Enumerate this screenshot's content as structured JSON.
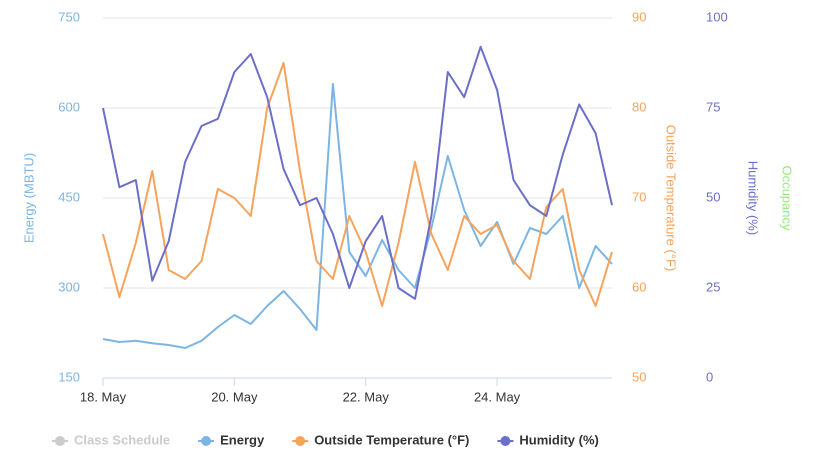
{
  "chart_data": {
    "type": "line",
    "x": [
      18,
      18.25,
      18.5,
      18.75,
      19,
      19.25,
      19.5,
      19.75,
      20,
      20.25,
      20.5,
      20.75,
      21,
      21.25,
      21.5,
      21.75,
      22,
      22.25,
      22.5,
      22.75,
      23,
      23.25,
      23.5,
      23.75,
      24,
      24.25,
      24.5,
      24.75,
      25,
      25.25,
      25.5,
      25.75
    ],
    "xlim": [
      18,
      25.75
    ],
    "xticks": [
      {
        "value": 18,
        "label": "18. May"
      },
      {
        "value": 20,
        "label": "20. May"
      },
      {
        "value": 22,
        "label": "22. May"
      },
      {
        "value": 24,
        "label": "24. May"
      }
    ],
    "ylabel": "Energy (MBTU)",
    "ylim": [
      150,
      750
    ],
    "yticks": [
      150,
      300,
      450,
      600,
      750
    ],
    "y2label": "Outside Temperature (°F)",
    "y2lim": [
      50,
      90
    ],
    "y2ticks": [
      50,
      60,
      70,
      80,
      90
    ],
    "y3label": "Humidity (%)",
    "y3lim": [
      0,
      100
    ],
    "y3ticks": [
      0,
      25,
      50,
      75,
      100
    ],
    "y4label": "Occupancy",
    "grid": true,
    "series": [
      {
        "name": "Class Schedule",
        "color": "#cccccc",
        "visible": false,
        "axis": "y4",
        "values": [
          null,
          null,
          null,
          null,
          null,
          null,
          null,
          null,
          null,
          null,
          null,
          null,
          null,
          null,
          null,
          null,
          null,
          null,
          null,
          null,
          null,
          null,
          null,
          null,
          null,
          null,
          null,
          null,
          null,
          null,
          null,
          null
        ]
      },
      {
        "name": "Energy",
        "color": "#7cb5e4",
        "axis": "y",
        "values": [
          215,
          210,
          212,
          208,
          205,
          200,
          212,
          235,
          255,
          240,
          270,
          295,
          265,
          230,
          640,
          360,
          320,
          380,
          330,
          300,
          400,
          520,
          430,
          370,
          410,
          340,
          400,
          390,
          420,
          300,
          370,
          340
        ]
      },
      {
        "name": "Outside Temperature (°F)",
        "color": "#f7a35c",
        "axis": "y2",
        "values": [
          66,
          59,
          65,
          73,
          62,
          61,
          63,
          71,
          70,
          68,
          80,
          85,
          73,
          63,
          61,
          68,
          64,
          58,
          65,
          74,
          66,
          62,
          68,
          66,
          67,
          63,
          61,
          69,
          71,
          62,
          58,
          64
        ]
      },
      {
        "name": "Humidity (%)",
        "color": "#6b6fc8",
        "axis": "y3",
        "values": [
          75,
          53,
          55,
          27,
          38,
          60,
          70,
          72,
          85,
          90,
          78,
          58,
          48,
          50,
          40,
          25,
          38,
          45,
          25,
          22,
          45,
          85,
          78,
          92,
          80,
          55,
          48,
          45,
          62,
          76,
          68,
          48
        ]
      }
    ]
  }
}
